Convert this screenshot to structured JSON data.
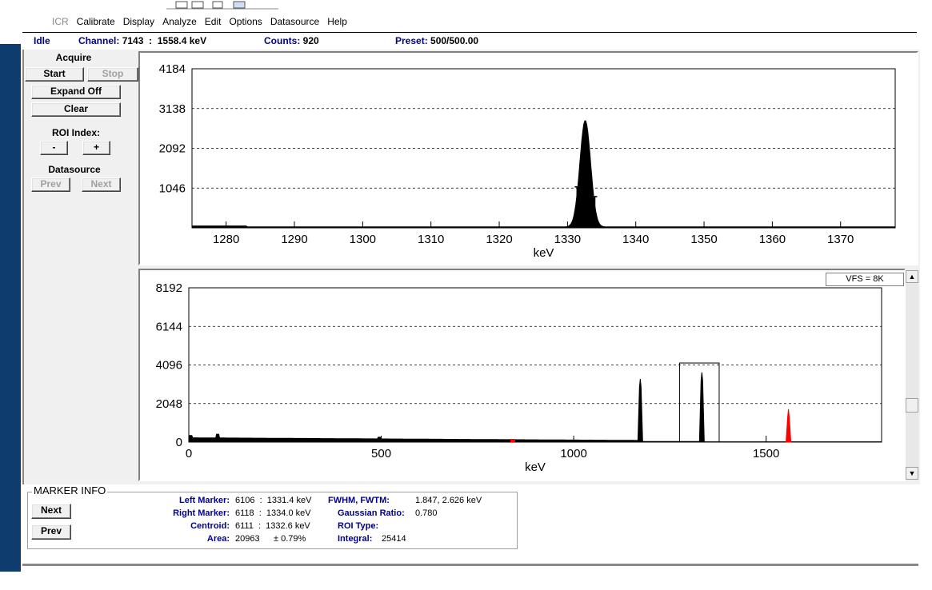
{
  "menu": {
    "items": [
      "ICR",
      "Calibrate",
      "Display",
      "Analyze",
      "Edit",
      "Options",
      "Datasource",
      "Help"
    ]
  },
  "status": {
    "state": "Idle",
    "channel_label": "Channel:",
    "channel_value": "7143  :  1558.4 keV",
    "counts_label": "Counts:",
    "counts_value": "920",
    "preset_label": "Preset:",
    "preset_value": "500/500.00"
  },
  "left_panel": {
    "acquire_label": "Acquire",
    "start": "Start",
    "stop": "Stop",
    "expand": "Expand Off",
    "clear": "Clear",
    "roi_label": "ROI Index:",
    "roi_minus": "-",
    "roi_plus": "+",
    "datasource_label": "Datasource",
    "prev": "Prev",
    "next": "Next"
  },
  "vfs_label": "VFS = 8K",
  "marker_info": {
    "title": "MARKER INFO",
    "next": "Next",
    "prev": "Prev",
    "left_marker_label": "Left Marker:",
    "left_marker_value": "6106  :  1331.4 keV",
    "right_marker_label": "Right Marker:",
    "right_marker_value": "6118  :  1334.0 keV",
    "centroid_label": "Centroid:",
    "centroid_value": "6111  :  1332.6 keV",
    "area_label": "Area:",
    "area_value": "20963",
    "area_err": "± 0.79%",
    "fwhm_label": "FWHM, FWTM:",
    "fwhm_value": "1.847, 2.626 keV",
    "gauss_label": "Gaussian Ratio:",
    "gauss_value": "0.780",
    "roi_type_label": "ROI Type:",
    "roi_type_value": "",
    "integral_label": "Integral:",
    "integral_value": "25414"
  },
  "chart_data": [
    {
      "type": "area",
      "xlabel": "keV",
      "ylabel": "",
      "xlim": [
        1275,
        1378
      ],
      "ylim": [
        0,
        4184
      ],
      "yticks": [
        "4184",
        "3138",
        "2092",
        "1046"
      ],
      "xticks": [
        "1280",
        "1290",
        "1300",
        "1310",
        "1320",
        "1330",
        "1340",
        "1350",
        "1360",
        "1370"
      ],
      "grid": "horizontal dashed",
      "peak": {
        "center_keV": 1332.6,
        "height": 2800,
        "fwhm_keV": 1.847,
        "baseline": 25
      },
      "roi_markers_keV": [
        1331.4,
        1334.0
      ],
      "color": "#000000"
    },
    {
      "type": "area",
      "xlabel": "keV",
      "ylabel": "",
      "xlim": [
        0,
        1800
      ],
      "ylim": [
        0,
        8192
      ],
      "yticks": [
        "8192",
        "6144",
        "4096",
        "2048",
        "0"
      ],
      "xticks": [
        "0",
        "500",
        "1000",
        "1500"
      ],
      "grid": "horizontal dashed",
      "peaks": [
        {
          "x_keV": 1173,
          "height": 3350,
          "color": "#000000"
        },
        {
          "x_keV": 1333,
          "height": 3700,
          "color": "#000000"
        },
        {
          "x_keV": 1558,
          "height": 1750,
          "color": "#ff0000"
        }
      ],
      "red_region_keV": [
        835,
        848
      ],
      "zoom_box_keV": [
        1275,
        1378
      ],
      "color": "#000000"
    }
  ]
}
